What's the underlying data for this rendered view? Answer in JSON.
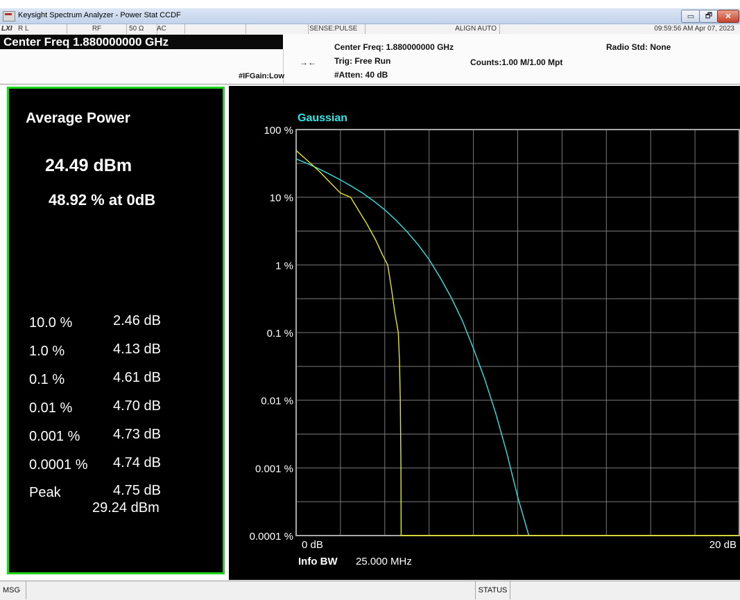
{
  "window": {
    "title": "Keysight Spectrum Analyzer - Power Stat CCDF",
    "min_glyph": "▭",
    "max_glyph": "🗗",
    "close_glyph": "✕"
  },
  "status_strip": {
    "lxi": "LXI",
    "rl": "R L",
    "rf": "RF",
    "impedance": "50 Ω",
    "coupling": "AC",
    "sense": "SENSE:PULSE",
    "align": "ALIGN AUTO",
    "datetime": "09:59:56 AM Apr 07, 2023"
  },
  "header": {
    "center_freq_big": "Center Freq 1.880000000 GHz",
    "ifgain": "#IFGain:Low",
    "trig_arrow": "→←",
    "center_freq": "Center Freq: 1.880000000 GHz",
    "trig": "Trig: Free Run",
    "atten": "#Atten: 40 dB",
    "counts": "Counts:1.00 M/1.00 Mpt",
    "radio_std": "Radio Std: None"
  },
  "results": {
    "title": "Average Power",
    "avg_power": "24.49 dBm",
    "percent_at_0db": "48.92 % at 0dB",
    "rows": [
      {
        "label": "10.0 %",
        "value": "2.46 dB"
      },
      {
        "label": "1.0 %",
        "value": "4.13 dB"
      },
      {
        "label": "0.1 %",
        "value": "4.61 dB"
      },
      {
        "label": "0.01 %",
        "value": "4.70 dB"
      },
      {
        "label": "0.001 %",
        "value": "4.73 dB"
      },
      {
        "label": "0.0001 %",
        "value": "4.74 dB"
      }
    ],
    "peak_label": "Peak",
    "peak_db": "4.75 dB",
    "peak_dbm": "29.24 dBm"
  },
  "chart_data": {
    "type": "line",
    "legend": "Gaussian",
    "y_scale": "log",
    "y_ticks": [
      "100 %",
      "10 %",
      "1 %",
      "0.1 %",
      "0.01 %",
      "0.001 %",
      "0.0001 %"
    ],
    "y_tick_values": [
      100,
      10,
      1,
      0.1,
      0.01,
      0.001,
      0.0001
    ],
    "ylim": [
      0.0001,
      100
    ],
    "xlim": [
      0,
      20
    ],
    "x_start_label": "0 dB",
    "x_end_label": "20 dB",
    "info_bw_label": "Info BW",
    "info_bw_value": "25.000 MHz",
    "grid": true,
    "series": [
      {
        "name": "Gaussian",
        "color": "#2ee6e6",
        "points": [
          [
            0,
            36.8
          ],
          [
            0.5,
            31.5
          ],
          [
            1,
            26.6
          ],
          [
            1.5,
            22
          ],
          [
            2,
            18
          ],
          [
            2.5,
            14.5
          ],
          [
            3,
            11.5
          ],
          [
            3.5,
            8.8
          ],
          [
            4,
            6.5
          ],
          [
            4.5,
            4.6
          ],
          [
            5,
            3.1
          ],
          [
            5.5,
            2
          ],
          [
            6,
            1.2
          ],
          [
            6.5,
            0.65
          ],
          [
            7,
            0.33
          ],
          [
            7.5,
            0.15
          ],
          [
            8,
            0.058
          ],
          [
            8.5,
            0.021
          ],
          [
            9,
            0.0065
          ],
          [
            9.5,
            0.0017
          ],
          [
            10,
            0.00037
          ],
          [
            10.5,
            0.0001
          ]
        ]
      },
      {
        "name": "",
        "color": "#e6e619",
        "points": [
          [
            0,
            48.9
          ],
          [
            0.5,
            35
          ],
          [
            1,
            25
          ],
          [
            1.5,
            17
          ],
          [
            2,
            11.5
          ],
          [
            2.46,
            10
          ],
          [
            2.8,
            6.5
          ],
          [
            3.2,
            4
          ],
          [
            3.6,
            2.3
          ],
          [
            3.9,
            1.4
          ],
          [
            4.13,
            1
          ],
          [
            4.3,
            0.45
          ],
          [
            4.45,
            0.2
          ],
          [
            4.61,
            0.1
          ],
          [
            4.66,
            0.04
          ],
          [
            4.7,
            0.01
          ],
          [
            4.73,
            0.001
          ],
          [
            4.74,
            0.0001
          ],
          [
            20,
            0.0001
          ]
        ]
      }
    ]
  },
  "bottom": {
    "msg": "MSG",
    "status": "STATUS"
  }
}
